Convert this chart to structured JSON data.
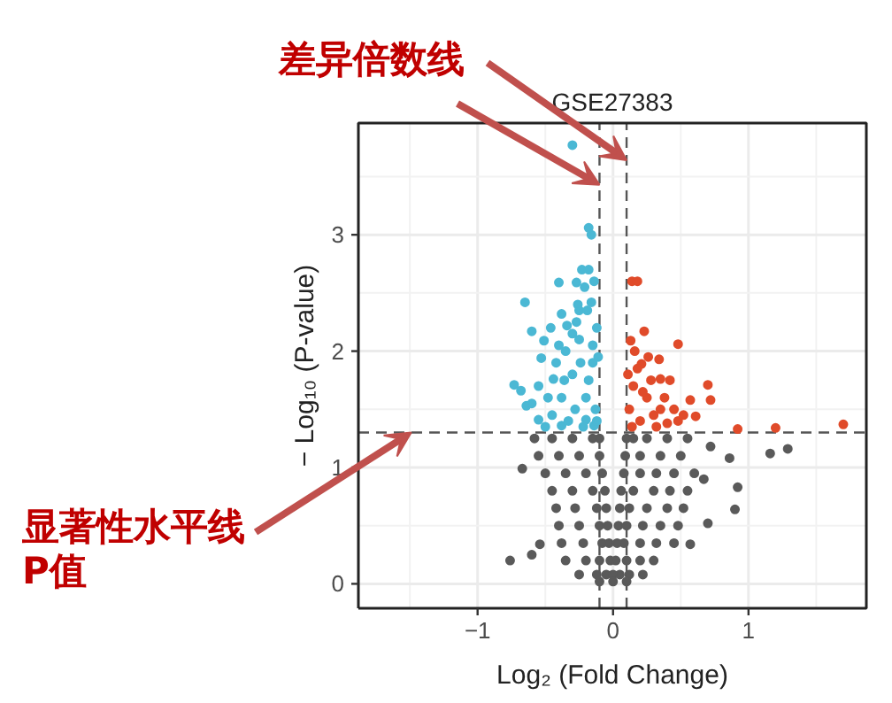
{
  "chart_data": {
    "type": "scatter",
    "title": "GSE27383",
    "xlabel": "Log₂ (Fold Change)",
    "ylabel": "− Log₁₀ (P-value)",
    "xlim": [
      -1.88,
      1.87
    ],
    "ylim": [
      -0.21,
      3.96
    ],
    "xticks": [
      -1,
      0,
      1
    ],
    "yticks": [
      0,
      1,
      2,
      3
    ],
    "grid": true,
    "marker": "circle",
    "series": [
      {
        "color": "#4bb8d4",
        "x": [
          -0.3,
          -0.18,
          -0.16,
          -0.23,
          -0.18,
          -0.4,
          -0.27,
          -0.65,
          -0.25,
          -0.38,
          -0.6,
          -0.51,
          -0.73,
          -0.68,
          -0.64,
          -0.53,
          -0.34,
          -0.16,
          -0.44,
          -0.55,
          -0.38,
          -0.2,
          -0.14,
          -0.42,
          -0.35,
          -0.3,
          -0.25,
          -0.2,
          -0.15,
          -0.12,
          -0.28,
          -0.38,
          -0.33,
          -0.22,
          -0.45,
          -0.18,
          -0.13,
          -0.11,
          -0.27,
          -0.4,
          -0.48,
          -0.55,
          -0.6,
          -0.5,
          -0.15,
          -0.12,
          -0.24,
          -0.36,
          -0.3,
          -0.19,
          -0.46,
          -0.14,
          -0.21,
          -0.26
        ],
        "values": [
          3.77,
          3.06,
          3.0,
          2.7,
          2.7,
          2.59,
          2.59,
          2.42,
          2.35,
          2.32,
          2.17,
          2.09,
          1.71,
          1.66,
          1.53,
          1.94,
          2.22,
          2.42,
          1.76,
          1.41,
          1.36,
          1.41,
          1.36,
          1.9,
          2.0,
          1.8,
          2.1,
          1.6,
          1.9,
          2.2,
          1.5,
          1.6,
          1.4,
          1.35,
          1.45,
          1.75,
          1.5,
          1.95,
          2.25,
          2.05,
          1.6,
          1.7,
          1.55,
          1.35,
          2.05,
          1.4,
          1.9,
          1.75,
          2.15,
          2.35,
          2.2,
          2.6,
          2.55,
          2.4
        ]
      },
      {
        "color": "#e04b2a",
        "x": [
          0.14,
          0.18,
          0.23,
          0.13,
          0.48,
          0.34,
          0.21,
          0.35,
          0.7,
          0.57,
          0.72,
          0.61,
          0.48,
          0.92,
          1.2,
          1.7,
          0.12,
          0.15,
          0.2,
          0.25,
          0.3,
          0.18,
          0.28,
          0.35,
          0.4,
          0.14,
          0.22,
          0.32,
          0.38,
          0.45,
          0.11,
          0.16,
          0.26,
          0.52,
          0.42
        ],
        "values": [
          2.6,
          2.6,
          2.17,
          2.09,
          2.06,
          1.93,
          1.89,
          1.76,
          1.71,
          1.58,
          1.58,
          1.44,
          1.4,
          1.33,
          1.34,
          1.37,
          1.5,
          1.7,
          1.4,
          1.6,
          1.45,
          1.85,
          1.75,
          1.5,
          1.38,
          1.35,
          1.65,
          1.35,
          1.6,
          1.5,
          1.8,
          2.0,
          1.95,
          1.45,
          1.75
        ]
      },
      {
        "color": "#5a5a5a",
        "x": [
          -0.58,
          -0.45,
          -0.3,
          -0.15,
          -0.1,
          0.1,
          0.15,
          0.25,
          0.4,
          0.55,
          -0.55,
          -0.4,
          -0.25,
          -0.1,
          0.09,
          0.2,
          0.35,
          0.5,
          -0.5,
          -0.35,
          -0.2,
          -0.08,
          0.08,
          0.2,
          0.32,
          0.45,
          0.6,
          -0.45,
          -0.3,
          -0.15,
          -0.06,
          0.06,
          0.15,
          0.3,
          0.42,
          0.55,
          -0.42,
          -0.28,
          -0.12,
          -0.05,
          0.05,
          0.12,
          0.25,
          0.4,
          0.52,
          -0.4,
          -0.25,
          -0.1,
          -0.04,
          0.04,
          0.1,
          0.22,
          0.35,
          0.48,
          -0.38,
          -0.22,
          -0.08,
          -0.03,
          0.03,
          0.08,
          0.2,
          0.32,
          0.45,
          -0.35,
          -0.2,
          -0.1,
          -0.02,
          0.02,
          0.1,
          0.2,
          0.3,
          -0.25,
          -0.12,
          -0.05,
          0.0,
          0.05,
          0.12,
          0.22,
          -0.1,
          0.0,
          0.1,
          -0.76,
          -0.6,
          -0.54,
          -0.67,
          0.72,
          0.86,
          1.16,
          1.29,
          0.67,
          0.92,
          0.9,
          0.7,
          0.57
        ],
        "values": [
          1.25,
          1.25,
          1.25,
          1.25,
          1.25,
          1.25,
          1.25,
          1.25,
          1.25,
          1.25,
          1.1,
          1.1,
          1.1,
          1.1,
          1.1,
          1.1,
          1.1,
          1.1,
          0.95,
          0.95,
          0.95,
          0.95,
          0.95,
          0.95,
          0.95,
          0.95,
          0.95,
          0.8,
          0.8,
          0.8,
          0.8,
          0.8,
          0.8,
          0.8,
          0.8,
          0.8,
          0.65,
          0.65,
          0.65,
          0.65,
          0.65,
          0.65,
          0.65,
          0.65,
          0.65,
          0.5,
          0.5,
          0.5,
          0.5,
          0.5,
          0.5,
          0.5,
          0.5,
          0.5,
          0.35,
          0.35,
          0.35,
          0.35,
          0.35,
          0.35,
          0.35,
          0.35,
          0.35,
          0.2,
          0.2,
          0.2,
          0.2,
          0.2,
          0.2,
          0.2,
          0.2,
          0.08,
          0.08,
          0.08,
          0.08,
          0.08,
          0.08,
          0.08,
          0.02,
          0.02,
          0.02,
          0.2,
          0.25,
          0.34,
          0.99,
          1.18,
          1.08,
          1.12,
          1.16,
          0.9,
          0.83,
          0.64,
          0.52,
          0.34
        ]
      }
    ],
    "ref_lines": [
      {
        "axis": "x",
        "value": 0.1,
        "label": null,
        "color": "#555555",
        "line_style": "dashed"
      },
      {
        "axis": "x",
        "value": -0.1,
        "label": null,
        "color": "#555555",
        "line_style": "dashed"
      },
      {
        "axis": "y",
        "value": 1.3,
        "label": null,
        "color": "#555555",
        "line_style": "dashed"
      }
    ],
    "annotations": [
      {
        "text": "差异倍数线",
        "x": -0.1,
        "y": 3.43
      },
      {
        "text": "显著性水平线\nP值",
        "x": -1.49,
        "y": 1.3
      }
    ]
  }
}
